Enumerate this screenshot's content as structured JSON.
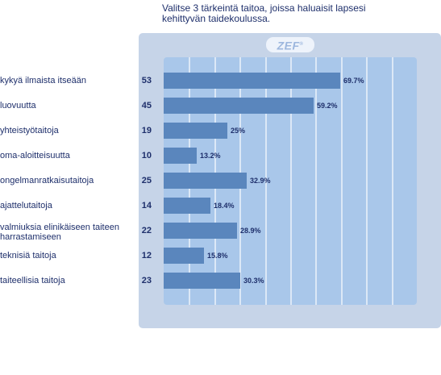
{
  "title": "Valitse 3 tärkeintä taitoa, joissa haluaisit lapsesi kehittyvän taidekoulussa.",
  "logo": {
    "text": "ZEF",
    "mark": "®"
  },
  "chart_data": {
    "type": "bar",
    "orientation": "horizontal",
    "title": "Valitse 3 tärkeintä taitoa, joissa haluaisit lapsesi kehittyvän taidekoulussa.",
    "categories": [
      "kykyä ilmaista itseään",
      "luovuutta",
      "yhteistyötaitoja",
      "oma-aloitteisuutta",
      "ongelmanratkaisutaitoja",
      "ajattelutaitoja",
      "valmiuksia elinikäiseen taiteen harrastamiseen",
      "teknisiä taitoja",
      "taiteellisia taitoja"
    ],
    "counts": [
      53,
      45,
      19,
      10,
      25,
      14,
      22,
      12,
      23
    ],
    "percent_labels": [
      "69.7%",
      "59.2%",
      "25%",
      "13.2%",
      "32.9%",
      "18.4%",
      "28.9%",
      "15.8%",
      "30.3%"
    ],
    "values": [
      69.7,
      59.2,
      25,
      13.2,
      32.9,
      18.4,
      28.9,
      15.8,
      30.3
    ],
    "xlim": [
      0,
      100
    ],
    "grid": true
  }
}
